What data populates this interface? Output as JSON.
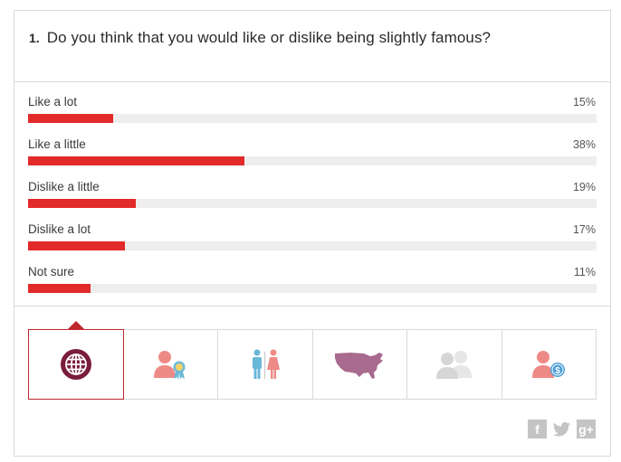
{
  "question": {
    "number": "1.",
    "text": "Do you think that you would like or dislike being slightly famous?"
  },
  "results": [
    {
      "label": "Like a lot",
      "percent_text": "15%",
      "percent": 15
    },
    {
      "label": "Like a little",
      "percent_text": "38%",
      "percent": 38
    },
    {
      "label": "Dislike a little",
      "percent_text": "19%",
      "percent": 19
    },
    {
      "label": "Dislike a lot",
      "percent_text": "17%",
      "percent": 17
    },
    {
      "label": "Not sure",
      "percent_text": "11%",
      "percent": 11
    }
  ],
  "filters": [
    {
      "icon": "globe-icon",
      "active": true
    },
    {
      "icon": "person-award-icon",
      "active": false
    },
    {
      "icon": "male-female-icon",
      "active": false
    },
    {
      "icon": "usa-map-icon",
      "active": false
    },
    {
      "icon": "two-people-icon",
      "active": false
    },
    {
      "icon": "person-dollar-icon",
      "active": false
    }
  ],
  "social": {
    "facebook_label": "f",
    "googleplus_label": "g+"
  },
  "colors": {
    "bar": "#e22a2a",
    "track": "#eeeeee",
    "active_border": "#c0272d",
    "globe": "#7a1d3a",
    "person_salmon": "#ee8a86",
    "male_blue": "#6ab8d8",
    "usa_purple": "#a86a8e",
    "people_gray": "#dcdcdc"
  }
}
